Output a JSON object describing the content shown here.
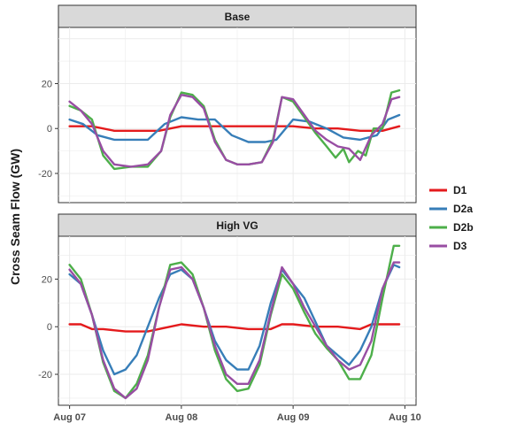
{
  "chart_data": {
    "type": "line",
    "ylabel": "Cross Seam Flow (GW)",
    "x_ticks": [
      "Aug 07",
      "Aug 08",
      "Aug 09",
      "Aug 10"
    ],
    "x_tick_days": [
      0,
      1,
      2,
      3
    ],
    "xlim_days": [
      -0.1,
      3.1
    ],
    "legend": {
      "placement": "right",
      "entries": [
        {
          "name": "D1",
          "color": "#e41a1c"
        },
        {
          "name": "D2a",
          "color": "#377eb8"
        },
        {
          "name": "D2b",
          "color": "#4daf4a"
        },
        {
          "name": "D3",
          "color": "#984ea3"
        }
      ]
    },
    "panels": [
      {
        "strip": "Base",
        "ylim": [
          -33,
          45
        ],
        "yticks": [
          20,
          0,
          -20
        ],
        "ytick_labels": [
          "20",
          "0",
          "-20"
        ],
        "series": [
          {
            "name": "D1",
            "color": "#e41a1c",
            "x": [
              0,
              0.2,
              0.4,
              0.6,
              0.8,
              1.0,
              1.2,
              1.4,
              1.6,
              1.8,
              2.0,
              2.2,
              2.4,
              2.6,
              2.8,
              2.95
            ],
            "y": [
              1,
              1,
              -1,
              -1,
              -1,
              1,
              1,
              1,
              1,
              1,
              1,
              0,
              0,
              -1,
              -1,
              1
            ]
          },
          {
            "name": "D2a",
            "color": "#377eb8",
            "x": [
              0,
              0.12,
              0.25,
              0.4,
              0.55,
              0.7,
              0.85,
              1.0,
              1.15,
              1.3,
              1.45,
              1.6,
              1.75,
              1.85,
              2.0,
              2.15,
              2.3,
              2.45,
              2.6,
              2.75,
              2.85,
              2.95
            ],
            "y": [
              4,
              2,
              -3,
              -5,
              -5,
              -5,
              2,
              5,
              4,
              4,
              -3,
              -6,
              -6,
              -5,
              4,
              3,
              0,
              -4,
              -5,
              -3,
              4,
              6
            ]
          },
          {
            "name": "D2b",
            "color": "#4daf4a",
            "x": [
              0,
              0.1,
              0.2,
              0.3,
              0.4,
              0.55,
              0.7,
              0.82,
              0.9,
              1.0,
              1.1,
              1.2,
              1.3,
              1.4,
              1.5,
              1.6,
              1.72,
              1.82,
              1.9,
              2.0,
              2.1,
              2.2,
              2.3,
              2.38,
              2.45,
              2.5,
              2.58,
              2.65,
              2.72,
              2.8,
              2.88,
              2.95
            ],
            "y": [
              10,
              8,
              4,
              -12,
              -18,
              -17,
              -17,
              -10,
              5,
              16,
              15,
              10,
              -5,
              -14,
              -16,
              -16,
              -15,
              -5,
              14,
              12,
              5,
              -2,
              -8,
              -13,
              -9,
              -15,
              -10,
              -12,
              0,
              0,
              16,
              17
            ]
          },
          {
            "name": "D3",
            "color": "#984ea3",
            "x": [
              0,
              0.1,
              0.2,
              0.3,
              0.4,
              0.55,
              0.7,
              0.82,
              0.9,
              1.0,
              1.1,
              1.2,
              1.3,
              1.4,
              1.5,
              1.6,
              1.72,
              1.82,
              1.9,
              2.0,
              2.1,
              2.2,
              2.3,
              2.4,
              2.5,
              2.6,
              2.7,
              2.8,
              2.88,
              2.95
            ],
            "y": [
              12,
              8,
              2,
              -10,
              -16,
              -17,
              -16,
              -10,
              6,
              15,
              14,
              9,
              -6,
              -14,
              -16,
              -16,
              -15,
              -6,
              14,
              13,
              6,
              -1,
              -5,
              -8,
              -9,
              -14,
              -3,
              2,
              13,
              14
            ]
          }
        ]
      },
      {
        "strip": "High VG",
        "ylim": [
          -33,
          38
        ],
        "yticks": [
          20,
          0,
          -20
        ],
        "ytick_labels": [
          "20",
          "0",
          "-20"
        ],
        "series": [
          {
            "name": "D1",
            "color": "#e41a1c",
            "x": [
              0,
              0.1,
              0.2,
              0.3,
              0.5,
              0.7,
              0.9,
              1.0,
              1.2,
              1.4,
              1.6,
              1.8,
              1.9,
              2.0,
              2.2,
              2.4,
              2.6,
              2.7,
              2.8,
              2.95
            ],
            "y": [
              1,
              1,
              -1,
              -1,
              -2,
              -2,
              0,
              1,
              0,
              0,
              -1,
              -1,
              1,
              1,
              0,
              0,
              -1,
              1,
              1,
              1
            ]
          },
          {
            "name": "D2a",
            "color": "#377eb8",
            "x": [
              0,
              0.1,
              0.2,
              0.3,
              0.4,
              0.5,
              0.6,
              0.7,
              0.8,
              0.9,
              1.0,
              1.1,
              1.2,
              1.3,
              1.4,
              1.5,
              1.6,
              1.7,
              1.8,
              1.9,
              2.0,
              2.1,
              2.2,
              2.3,
              2.4,
              2.5,
              2.6,
              2.7,
              2.8,
              2.9,
              2.95
            ],
            "y": [
              22,
              18,
              5,
              -10,
              -20,
              -18,
              -12,
              0,
              12,
              22,
              24,
              20,
              8,
              -6,
              -14,
              -18,
              -18,
              -8,
              10,
              24,
              18,
              12,
              2,
              -8,
              -12,
              -16,
              -10,
              0,
              16,
              26,
              25
            ]
          },
          {
            "name": "D2b",
            "color": "#4daf4a",
            "x": [
              0,
              0.1,
              0.2,
              0.3,
              0.4,
              0.5,
              0.6,
              0.7,
              0.8,
              0.9,
              1.0,
              1.1,
              1.2,
              1.3,
              1.4,
              1.5,
              1.6,
              1.7,
              1.8,
              1.9,
              2.0,
              2.1,
              2.2,
              2.3,
              2.4,
              2.5,
              2.6,
              2.7,
              2.8,
              2.9,
              2.95
            ],
            "y": [
              26,
              20,
              5,
              -15,
              -27,
              -30,
              -24,
              -12,
              8,
              26,
              27,
              22,
              8,
              -10,
              -22,
              -27,
              -26,
              -16,
              5,
              22,
              16,
              6,
              -3,
              -9,
              -14,
              -22,
              -22,
              -12,
              12,
              34,
              34
            ]
          },
          {
            "name": "D3",
            "color": "#984ea3",
            "x": [
              0,
              0.1,
              0.2,
              0.3,
              0.4,
              0.5,
              0.6,
              0.7,
              0.8,
              0.9,
              1.0,
              1.1,
              1.2,
              1.3,
              1.4,
              1.5,
              1.6,
              1.7,
              1.8,
              1.9,
              2.0,
              2.1,
              2.2,
              2.3,
              2.4,
              2.5,
              2.6,
              2.7,
              2.8,
              2.9,
              2.95
            ],
            "y": [
              24,
              18,
              5,
              -14,
              -26,
              -30,
              -26,
              -14,
              8,
              24,
              25,
              20,
              8,
              -8,
              -20,
              -24,
              -24,
              -14,
              6,
              25,
              18,
              8,
              0,
              -8,
              -14,
              -18,
              -16,
              -6,
              16,
              27,
              27
            ]
          }
        ]
      }
    ]
  }
}
